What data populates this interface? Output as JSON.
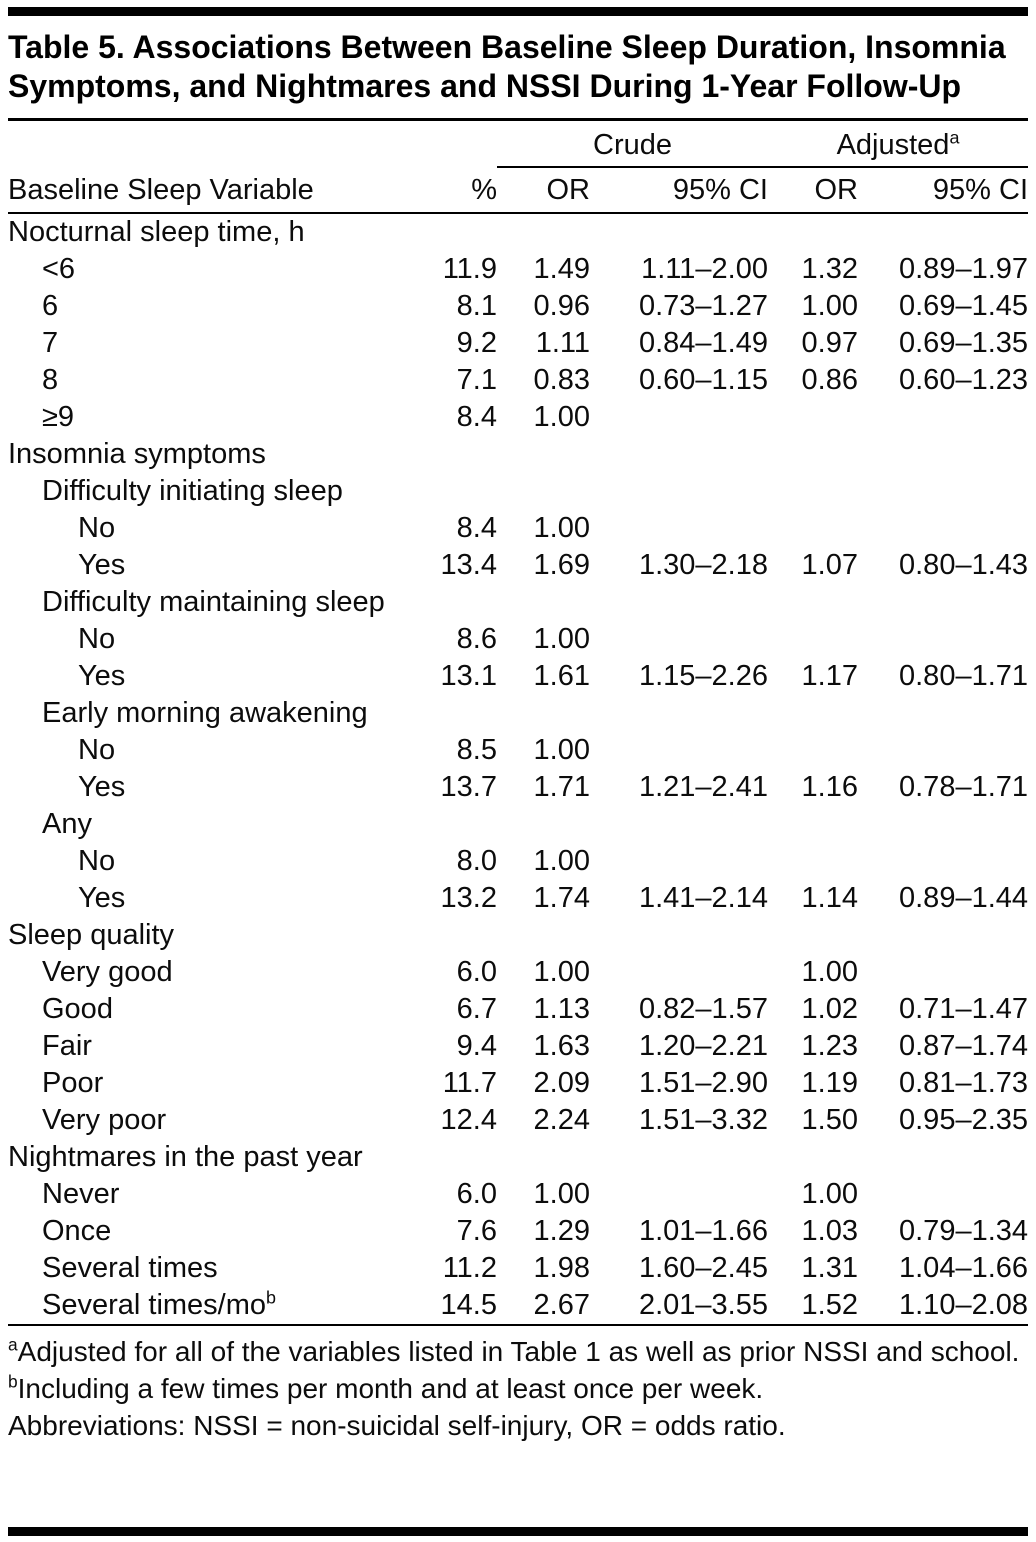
{
  "table": {
    "title": "Table 5. Associations Between Baseline Sleep Duration, Insomnia Symptoms, and Nightmares and NSSI During 1-Year Follow-Up",
    "span_headers": {
      "crude": "Crude",
      "adjusted": "Adjusted",
      "adjusted_sup": "a"
    },
    "columns": [
      "Baseline Sleep Variable",
      "%",
      "OR",
      "95% CI",
      "OR",
      "95% CI"
    ],
    "rows": [
      {
        "label": "Nocturnal sleep time, h",
        "indent": 0,
        "pct": "",
        "crude_or": "",
        "crude_ci": "",
        "adj_or": "",
        "adj_ci": ""
      },
      {
        "label": "<6",
        "indent": 1,
        "pct": "11.9",
        "crude_or": "1.49",
        "crude_ci": "1.11–2.00",
        "adj_or": "1.32",
        "adj_ci": "0.89–1.97"
      },
      {
        "label": "6",
        "indent": 1,
        "pct": "8.1",
        "crude_or": "0.96",
        "crude_ci": "0.73–1.27",
        "adj_or": "1.00",
        "adj_ci": "0.69–1.45"
      },
      {
        "label": "7",
        "indent": 1,
        "pct": "9.2",
        "crude_or": "1.11",
        "crude_ci": "0.84–1.49",
        "adj_or": "0.97",
        "adj_ci": "0.69–1.35"
      },
      {
        "label": "8",
        "indent": 1,
        "pct": "7.1",
        "crude_or": "0.83",
        "crude_ci": "0.60–1.15",
        "adj_or": "0.86",
        "adj_ci": "0.60–1.23"
      },
      {
        "label": "≥9",
        "indent": 1,
        "pct": "8.4",
        "crude_or": "1.00",
        "crude_ci": "",
        "adj_or": "",
        "adj_ci": ""
      },
      {
        "label": "Insomnia symptoms",
        "indent": 0,
        "pct": "",
        "crude_or": "",
        "crude_ci": "",
        "adj_or": "",
        "adj_ci": ""
      },
      {
        "label": "Difficulty initiating sleep",
        "indent": 1,
        "pct": "",
        "crude_or": "",
        "crude_ci": "",
        "adj_or": "",
        "adj_ci": ""
      },
      {
        "label": "No",
        "indent": 2,
        "pct": "8.4",
        "crude_or": "1.00",
        "crude_ci": "",
        "adj_or": "",
        "adj_ci": ""
      },
      {
        "label": "Yes",
        "indent": 2,
        "pct": "13.4",
        "crude_or": "1.69",
        "crude_ci": "1.30–2.18",
        "adj_or": "1.07",
        "adj_ci": "0.80–1.43"
      },
      {
        "label": "Difficulty maintaining sleep",
        "indent": 1,
        "pct": "",
        "crude_or": "",
        "crude_ci": "",
        "adj_or": "",
        "adj_ci": ""
      },
      {
        "label": "No",
        "indent": 2,
        "pct": "8.6",
        "crude_or": "1.00",
        "crude_ci": "",
        "adj_or": "",
        "adj_ci": ""
      },
      {
        "label": "Yes",
        "indent": 2,
        "pct": "13.1",
        "crude_or": "1.61",
        "crude_ci": "1.15–2.26",
        "adj_or": "1.17",
        "adj_ci": "0.80–1.71"
      },
      {
        "label": "Early morning awakening",
        "indent": 1,
        "pct": "",
        "crude_or": "",
        "crude_ci": "",
        "adj_or": "",
        "adj_ci": ""
      },
      {
        "label": "No",
        "indent": 2,
        "pct": "8.5",
        "crude_or": "1.00",
        "crude_ci": "",
        "adj_or": "",
        "adj_ci": ""
      },
      {
        "label": "Yes",
        "indent": 2,
        "pct": "13.7",
        "crude_or": "1.71",
        "crude_ci": "1.21–2.41",
        "adj_or": "1.16",
        "adj_ci": "0.78–1.71"
      },
      {
        "label": "Any",
        "indent": 1,
        "pct": "",
        "crude_or": "",
        "crude_ci": "",
        "adj_or": "",
        "adj_ci": ""
      },
      {
        "label": "No",
        "indent": 2,
        "pct": "8.0",
        "crude_or": "1.00",
        "crude_ci": "",
        "adj_or": "",
        "adj_ci": ""
      },
      {
        "label": "Yes",
        "indent": 2,
        "pct": "13.2",
        "crude_or": "1.74",
        "crude_ci": "1.41–2.14",
        "adj_or": "1.14",
        "adj_ci": "0.89–1.44"
      },
      {
        "label": "Sleep quality",
        "indent": 0,
        "pct": "",
        "crude_or": "",
        "crude_ci": "",
        "adj_or": "",
        "adj_ci": ""
      },
      {
        "label": "Very good",
        "indent": 1,
        "pct": "6.0",
        "crude_or": "1.00",
        "crude_ci": "",
        "adj_or": "1.00",
        "adj_ci": ""
      },
      {
        "label": "Good",
        "indent": 1,
        "pct": "6.7",
        "crude_or": "1.13",
        "crude_ci": "0.82–1.57",
        "adj_or": "1.02",
        "adj_ci": "0.71–1.47"
      },
      {
        "label": "Fair",
        "indent": 1,
        "pct": "9.4",
        "crude_or": "1.63",
        "crude_ci": "1.20–2.21",
        "adj_or": "1.23",
        "adj_ci": "0.87–1.74"
      },
      {
        "label": "Poor",
        "indent": 1,
        "pct": "11.7",
        "crude_or": "2.09",
        "crude_ci": "1.51–2.90",
        "adj_or": "1.19",
        "adj_ci": "0.81–1.73"
      },
      {
        "label": "Very poor",
        "indent": 1,
        "pct": "12.4",
        "crude_or": "2.24",
        "crude_ci": "1.51–3.32",
        "adj_or": "1.50",
        "adj_ci": "0.95–2.35"
      },
      {
        "label": "Nightmares in the past year",
        "indent": 0,
        "pct": "",
        "crude_or": "",
        "crude_ci": "",
        "adj_or": "",
        "adj_ci": ""
      },
      {
        "label": "Never",
        "indent": 1,
        "pct": "6.0",
        "crude_or": "1.00",
        "crude_ci": "",
        "adj_or": "1.00",
        "adj_ci": ""
      },
      {
        "label": "Once",
        "indent": 1,
        "pct": "7.6",
        "crude_or": "1.29",
        "crude_ci": "1.01–1.66",
        "adj_or": "1.03",
        "adj_ci": "0.79–1.34"
      },
      {
        "label": "Several times",
        "indent": 1,
        "pct": "11.2",
        "crude_or": "1.98",
        "crude_ci": "1.60–2.45",
        "adj_or": "1.31",
        "adj_ci": "1.04–1.66"
      },
      {
        "label": "Several times/mo",
        "label_sup": "b",
        "indent": 1,
        "pct": "14.5",
        "crude_or": "2.67",
        "crude_ci": "2.01–3.55",
        "adj_or": "1.52",
        "adj_ci": "1.10–2.08"
      }
    ],
    "footnotes": [
      {
        "sup": "a",
        "text": "Adjusted for all of the variables listed in Table 1 as well as prior NSSI and school."
      },
      {
        "sup": "b",
        "text": "Including a few times per month and at least once per week."
      },
      {
        "sup": "",
        "text": "Abbreviations: NSSI = non-suicidal self-injury, OR = odds ratio."
      }
    ]
  }
}
